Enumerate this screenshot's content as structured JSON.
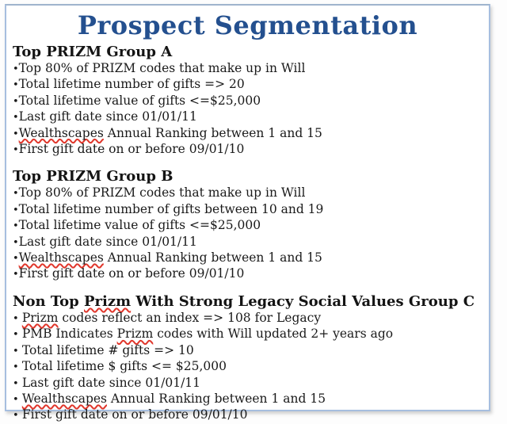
{
  "title": "Prospect Segmentation",
  "colors": {
    "title_blue": "#24508f",
    "border_blue": "#a6bedf",
    "body_text": "#1a1a1a",
    "squiggle_red": "#e0362b",
    "background": "#ffffff"
  },
  "sections": [
    {
      "bullet": "•",
      "heading": [
        {
          "text": "Top PRIZM Group A"
        }
      ],
      "items": [
        [
          {
            "text": "Top 80% of PRIZM codes that make up in Will"
          }
        ],
        [
          {
            "text": "Total lifetime number of gifts => 20"
          }
        ],
        [
          {
            "text": "Total lifetime value of gifts <=$25,000"
          }
        ],
        [
          {
            "text": "Last gift date since 01/01/11"
          }
        ],
        [
          {
            "text": "Wealthscapes",
            "misspelled": true
          },
          {
            "text": " Annual Ranking between 1 and 15"
          }
        ],
        [
          {
            "text": "First gift date on or before 09/01/10"
          }
        ]
      ]
    },
    {
      "bullet": "•",
      "heading": [
        {
          "text": "Top PRIZM Group B"
        }
      ],
      "items": [
        [
          {
            "text": "Top 80% of PRIZM codes that make up in Will"
          }
        ],
        [
          {
            "text": "Total lifetime number of gifts between 10 and 19"
          }
        ],
        [
          {
            "text": "Total lifetime value of gifts <=$25,000"
          }
        ],
        [
          {
            "text": "Last gift date since 01/01/11"
          }
        ],
        [
          {
            "text": "Wealthscapes",
            "misspelled": true
          },
          {
            "text": " Annual Ranking between 1 and 15"
          }
        ],
        [
          {
            "text": "First gift date on or before 09/01/10"
          }
        ]
      ]
    },
    {
      "bullet": "• ",
      "heading": [
        {
          "text": "Non Top "
        },
        {
          "text": "Prizm",
          "misspelled": true
        },
        {
          "text": " With Strong Legacy Social Values Group C"
        }
      ],
      "items": [
        [
          {
            "text": "Prizm",
            "misspelled": true
          },
          {
            "text": " codes reflect an index => 108 for Legacy"
          }
        ],
        [
          {
            "text": "PMB Indicates "
          },
          {
            "text": "Prizm",
            "misspelled": true
          },
          {
            "text": " codes with Will updated 2+ years ago"
          }
        ],
        [
          {
            "text": "Total lifetime # gifts => 10"
          }
        ],
        [
          {
            "text": "Total lifetime $ gifts <= $25,000"
          }
        ],
        [
          {
            "text": "Last gift date since 01/01/11"
          }
        ],
        [
          {
            "text": "Wealthscapes",
            "misspelled": true
          },
          {
            "text": " Annual Ranking between 1 and 15"
          }
        ],
        [
          {
            "text": "First gift date on or before 09/01/10"
          }
        ]
      ]
    }
  ]
}
